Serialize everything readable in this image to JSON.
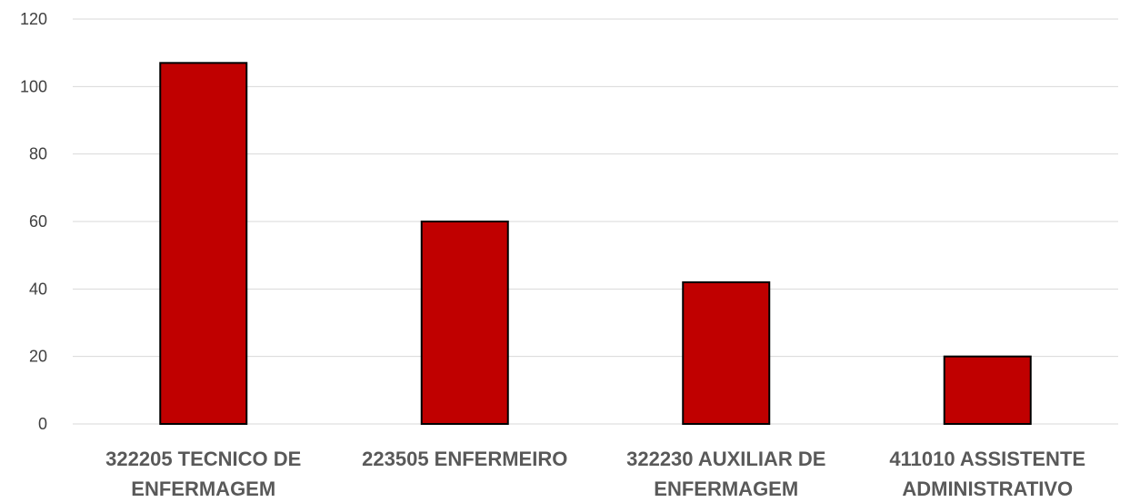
{
  "chart_data": {
    "type": "bar",
    "title": "",
    "xlabel": "",
    "ylabel": "",
    "categories": [
      [
        "322205 TECNICO DE",
        "ENFERMAGEM"
      ],
      [
        "223505 ENFERMEIRO"
      ],
      [
        "322230 AUXILIAR DE",
        "ENFERMAGEM"
      ],
      [
        "411010 ASSISTENTE",
        "ADMINISTRATIVO"
      ]
    ],
    "values": [
      107,
      60,
      42,
      20
    ],
    "ylim": [
      0,
      120
    ],
    "yticks": [
      0,
      20,
      40,
      60,
      80,
      100,
      120
    ],
    "grid": true,
    "legend": "none",
    "colors": {
      "bar_fill": "#C00000",
      "bar_border": "#000000",
      "gridline": "#D9D9D9",
      "tick_text": "#404040",
      "category_text": "#595959"
    }
  }
}
